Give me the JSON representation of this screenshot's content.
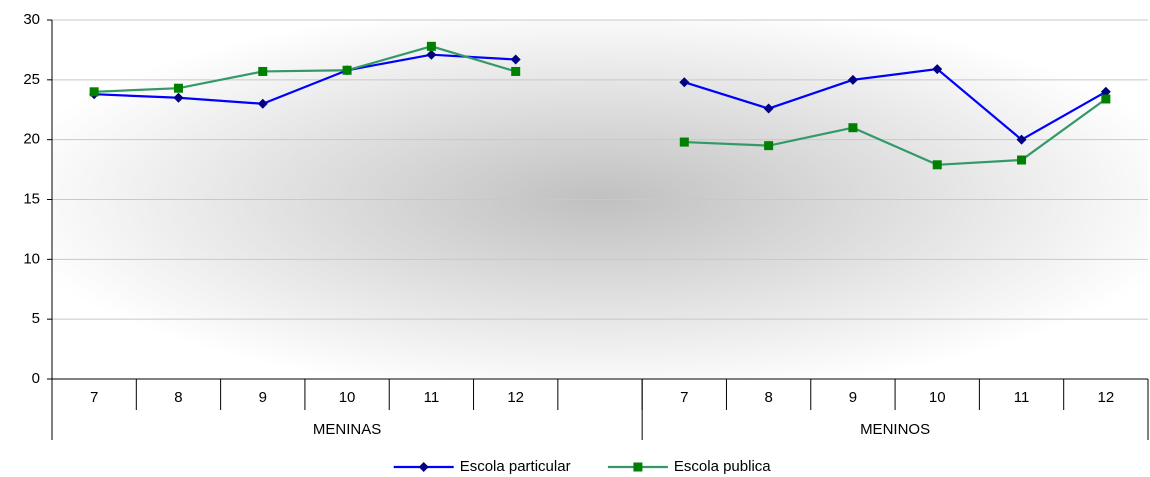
{
  "chart_data": {
    "type": "line",
    "categories": [
      "7",
      "8",
      "9",
      "10",
      "11",
      "12",
      null,
      "7",
      "8",
      "9",
      "10",
      "11",
      "12"
    ],
    "groups": [
      {
        "name": "MENINAS",
        "count": 7
      },
      {
        "name": "MENINOS",
        "count": 6
      }
    ],
    "series": [
      {
        "name": "Escola particular",
        "color": "#0000ff",
        "marker_color": "#000080",
        "marker": "diamond",
        "values": [
          23.8,
          23.5,
          23.0,
          25.8,
          27.1,
          26.7,
          null,
          24.8,
          22.6,
          25.0,
          25.9,
          20.0,
          24.0
        ]
      },
      {
        "name": "Escola publica",
        "color": "#339966",
        "marker_color": "#008000",
        "marker": "square",
        "values": [
          24.0,
          24.3,
          25.7,
          25.8,
          27.8,
          25.7,
          null,
          19.8,
          19.5,
          21.0,
          17.9,
          18.3,
          23.4
        ]
      }
    ],
    "ylim": [
      0,
      30
    ],
    "yticks": [
      0,
      5,
      10,
      15,
      20,
      25,
      30
    ],
    "grid": true,
    "legend": "bottom"
  }
}
